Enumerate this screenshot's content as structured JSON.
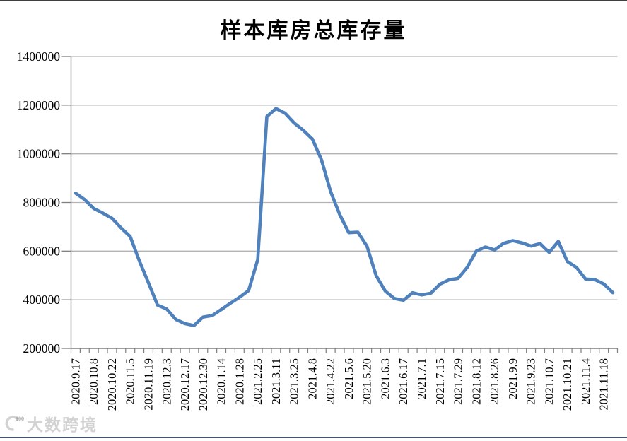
{
  "page": {
    "background": "#ffffff",
    "top_border_color": "#3f3f3f",
    "bottom_border_color": "#44546a"
  },
  "watermark": {
    "logo": "100",
    "text": "大数跨境"
  },
  "chart_data": {
    "type": "line",
    "title": "样本库房总库存量",
    "xlabel": "",
    "ylabel": "",
    "ylim": [
      200000,
      1400000
    ],
    "ytick_interval": 200000,
    "ytick_labels": [
      "200000",
      "400000",
      "600000",
      "800000",
      "1000000",
      "1200000",
      "1400000"
    ],
    "x_tick_labels": [
      "2020.9.17",
      "2020.10.8",
      "2020.10.22",
      "2020.11.5",
      "2020.11.19",
      "2020.12.3",
      "2020.12.17",
      "2020.12.30",
      "2020.1.14",
      "2020.1.28",
      "2021.2.25",
      "2021.3.11",
      "2021.3.25",
      "2021.4.8",
      "2021.4.22",
      "2021.5.6",
      "2021.5.20",
      "2021.6.3",
      "2021.6.17",
      "2021.7.1",
      "2021.7.15",
      "2021.7.29",
      "2021.8.12",
      "2021.8.26",
      "2021.9.9",
      "2021.9.23",
      "2021.10.7",
      "2021.10.21",
      "2021.11.4",
      "2021.11.18"
    ],
    "label_every": 2,
    "grid": true,
    "legend": false,
    "line_color": "#4F81BD",
    "gridline_color": "#b3b3b3",
    "axis_color": "#7f7f7f",
    "values": [
      838000,
      812000,
      775000,
      756000,
      735000,
      695000,
      660000,
      560000,
      470000,
      378000,
      362000,
      319000,
      302000,
      294000,
      329000,
      335000,
      360000,
      386000,
      410000,
      438000,
      565000,
      1153000,
      1186000,
      1167000,
      1127000,
      1097000,
      1061000,
      975000,
      845000,
      750000,
      676000,
      678000,
      620000,
      499000,
      436000,
      405000,
      398000,
      429000,
      420000,
      427000,
      464000,
      482000,
      488000,
      533000,
      600000,
      617000,
      605000,
      632000,
      643000,
      634000,
      621000,
      631000,
      595000,
      640000,
      557000,
      533000,
      485000,
      483000,
      465000,
      429000
    ]
  }
}
